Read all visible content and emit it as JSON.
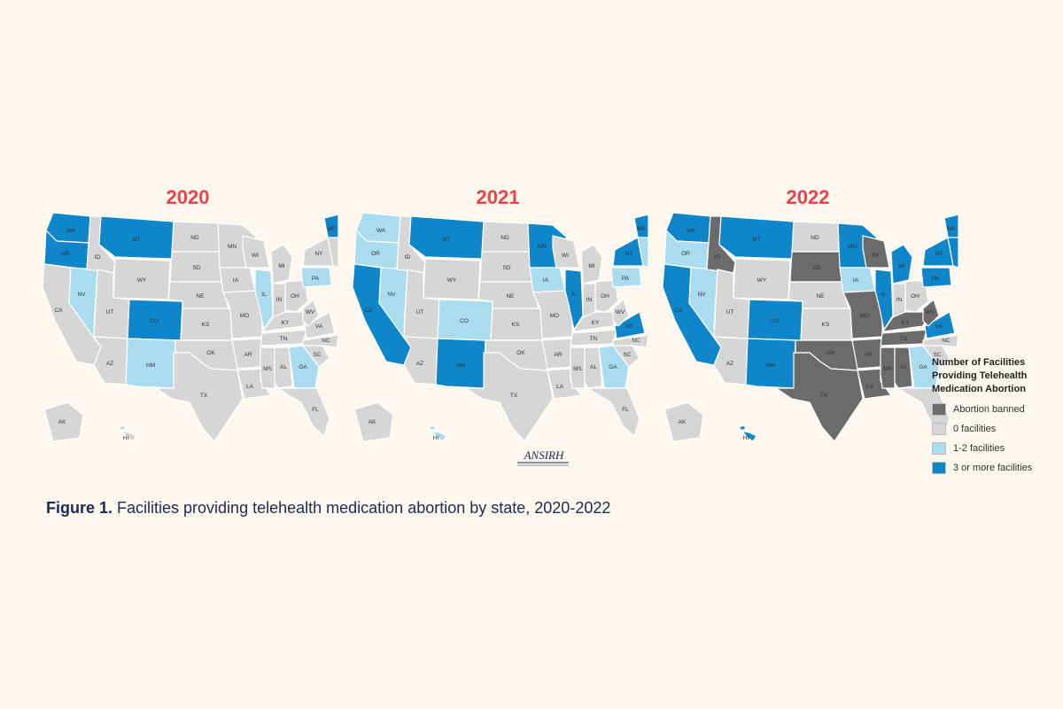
{
  "colors": {
    "banned": "#6b6b6b",
    "zero": "#d6d6d6",
    "one_two": "#a9dcef",
    "three_plus": "#0e86c9",
    "year_title": "#e8434b",
    "caption": "#1c2a54",
    "background": "#fdf7ee"
  },
  "panels": [
    {
      "year": "2020",
      "states": {
        "WA": "three_plus",
        "OR": "three_plus",
        "CA": "zero",
        "NV": "one_two",
        "ID": "zero",
        "MT": "three_plus",
        "WY": "zero",
        "UT": "zero",
        "AZ": "zero",
        "CO": "three_plus",
        "NM": "one_two",
        "ND": "zero",
        "SD": "zero",
        "NE": "zero",
        "KS": "zero",
        "OK": "zero",
        "TX": "zero",
        "MN": "zero",
        "IA": "zero",
        "MO": "zero",
        "AR": "zero",
        "LA": "zero",
        "WI": "zero",
        "IL": "one_two",
        "MI": "zero",
        "IN": "zero",
        "OH": "zero",
        "KY": "zero",
        "TN": "zero",
        "MS": "zero",
        "AL": "zero",
        "GA": "one_two",
        "FL": "zero",
        "SC": "zero",
        "NC": "zero",
        "VA": "zero",
        "WV": "zero",
        "PA": "one_two",
        "NY": "zero",
        "ME": "three_plus",
        "NE_STATES": "zero",
        "AK": "zero",
        "HI": "zero"
      }
    },
    {
      "year": "2021",
      "states": {
        "WA": "one_two",
        "OR": "one_two",
        "CA": "three_plus",
        "NV": "one_two",
        "ID": "zero",
        "MT": "three_plus",
        "WY": "zero",
        "UT": "zero",
        "AZ": "zero",
        "CO": "one_two",
        "NM": "three_plus",
        "ND": "zero",
        "SD": "zero",
        "NE": "zero",
        "KS": "zero",
        "OK": "zero",
        "TX": "zero",
        "MN": "three_plus",
        "IA": "one_two",
        "MO": "zero",
        "AR": "zero",
        "LA": "zero",
        "WI": "zero",
        "IL": "three_plus",
        "MI": "zero",
        "IN": "zero",
        "OH": "zero",
        "KY": "zero",
        "TN": "zero",
        "MS": "zero",
        "AL": "zero",
        "GA": "one_two",
        "FL": "zero",
        "SC": "zero",
        "NC": "zero",
        "VA": "three_plus",
        "WV": "zero",
        "PA": "one_two",
        "NY": "three_plus",
        "ME": "three_plus",
        "NE_STATES": "one_two",
        "AK": "zero",
        "HI": "one_two"
      }
    },
    {
      "year": "2022",
      "states": {
        "WA": "three_plus",
        "OR": "one_two",
        "CA": "three_plus",
        "NV": "one_two",
        "ID": "banned",
        "MT": "three_plus",
        "WY": "zero",
        "UT": "zero",
        "AZ": "zero",
        "CO": "three_plus",
        "NM": "three_plus",
        "ND": "zero",
        "SD": "banned",
        "NE": "zero",
        "KS": "zero",
        "OK": "banned",
        "TX": "banned",
        "MN": "three_plus",
        "IA": "one_two",
        "MO": "banned",
        "AR": "banned",
        "LA": "banned",
        "WI": "banned",
        "IL": "three_plus",
        "MI": "three_plus",
        "IN": "zero",
        "OH": "zero",
        "KY": "banned",
        "TN": "banned",
        "MS": "banned",
        "AL": "banned",
        "GA": "one_two",
        "FL": "zero",
        "SC": "zero",
        "NC": "zero",
        "VA": "three_plus",
        "WV": "banned",
        "PA": "three_plus",
        "NY": "three_plus",
        "ME": "three_plus",
        "NE_STATES": "three_plus",
        "AK": "zero",
        "HI": "three_plus"
      }
    }
  ],
  "legend": {
    "title": "Number of Facilities Providing Telehealth Medication Abortion",
    "items": [
      {
        "key": "banned",
        "label": "Abortion banned"
      },
      {
        "key": "zero",
        "label": "0 facilities"
      },
      {
        "key": "one_two",
        "label": "1-2 facilities"
      },
      {
        "key": "three_plus",
        "label": "3 or more facilities"
      }
    ]
  },
  "logo_text": "ANSIRH",
  "caption": {
    "bold": "Figure 1.",
    "text": " Facilities providing telehealth medication abortion by state, 2020-2022"
  }
}
